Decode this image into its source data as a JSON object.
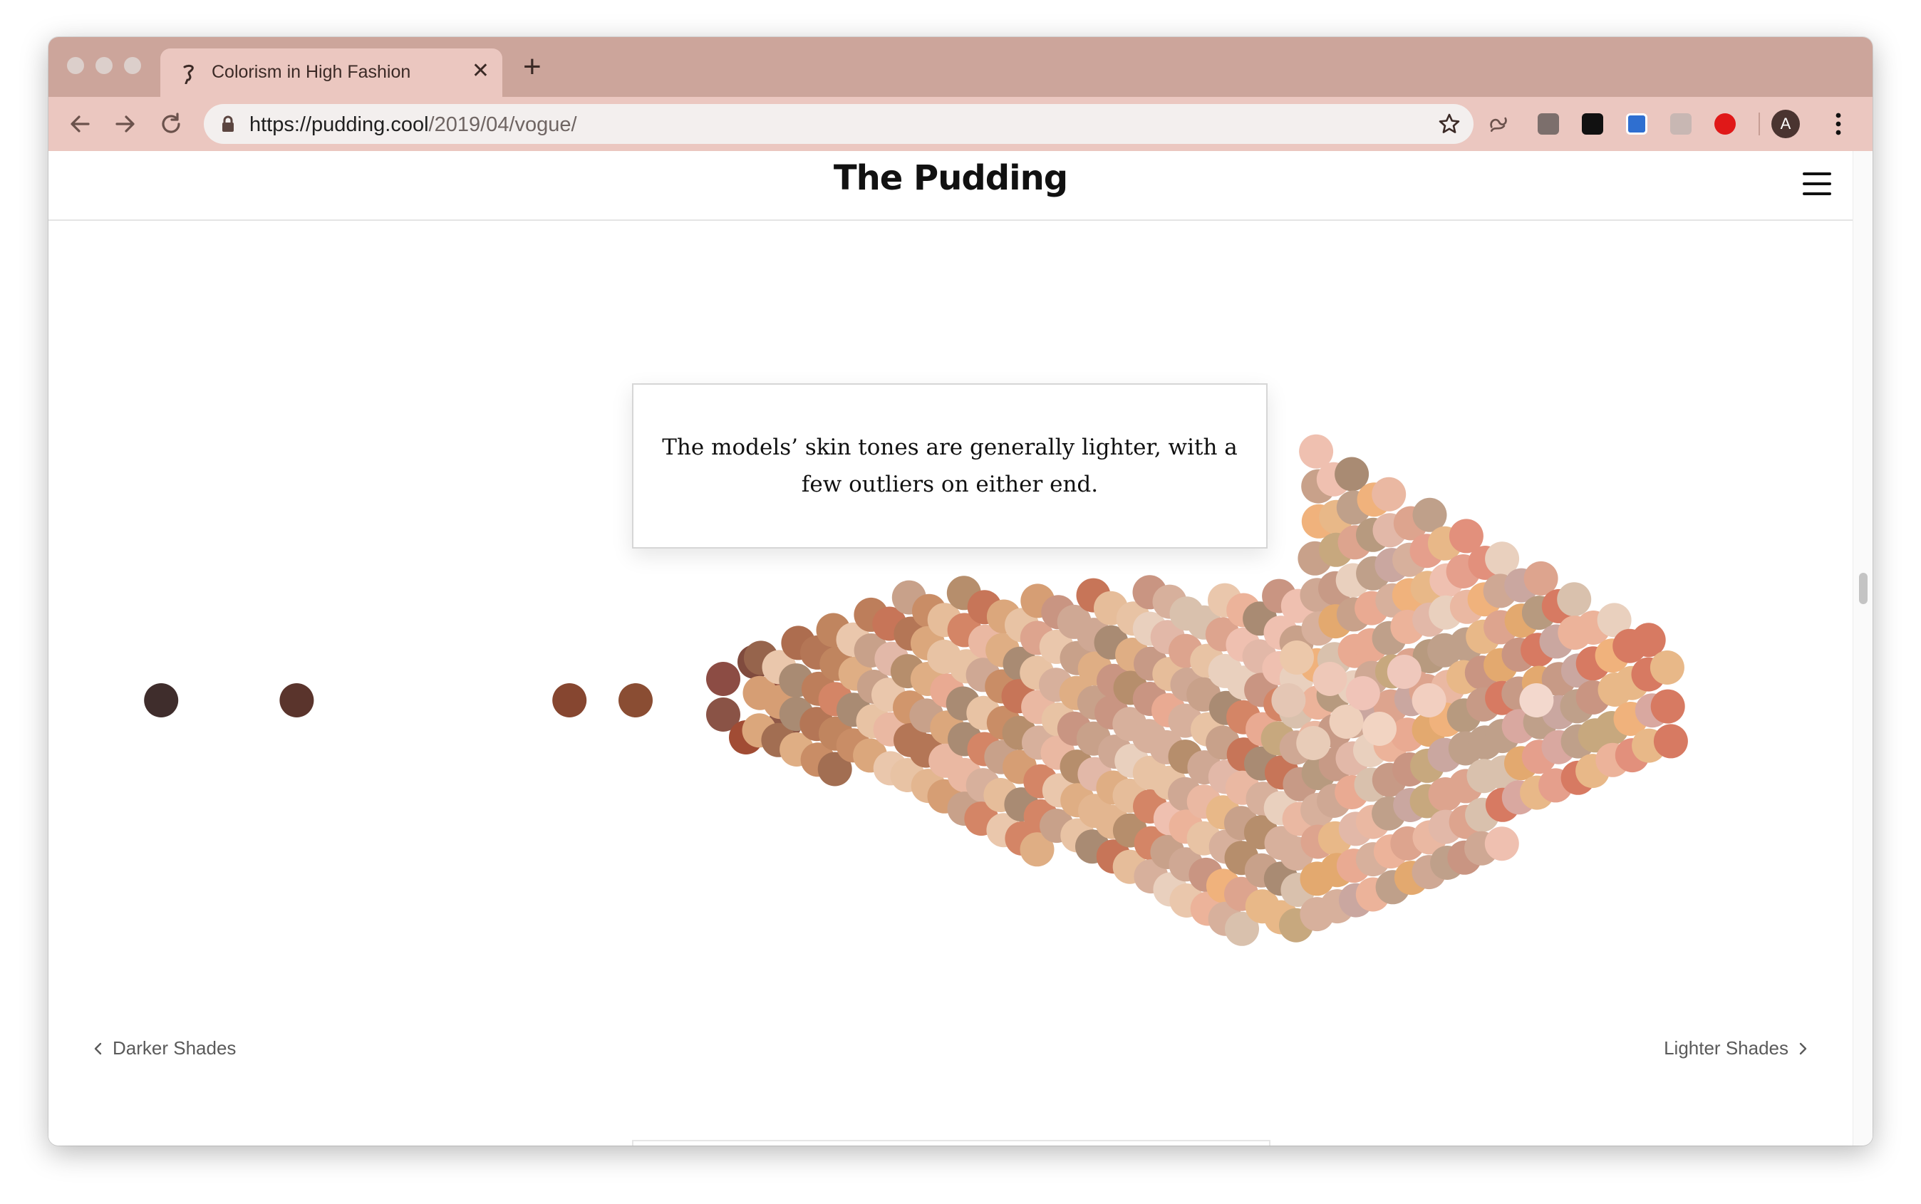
{
  "browser": {
    "tab_title": "Colorism in High Fashion",
    "tab_close": "✕",
    "new_tab": "+",
    "url_host": "https://pudding.cool",
    "url_path": "/2019/04/vogue/",
    "profile_initial": "A",
    "colors": {
      "tabbar": "#cca59b",
      "toolbar": "#ebc7c0"
    }
  },
  "site": {
    "logo": "The Pudding"
  },
  "story": {
    "callout": "The models’ skin tones are generally lighter, with a few outliers on either end."
  },
  "chart_data": {
    "type": "scatter",
    "title": "",
    "xlabel_left": "Darker Shades",
    "xlabel_right": "Lighter Shades",
    "x_meaning": "skin tone, darker to lighter",
    "y_meaning": "beeswarm spread (no scale)",
    "series": [
      {
        "points": [
          {
            "x": 1.3,
            "c": "#3f2d2c"
          },
          {
            "x": 9.5,
            "c": "#5a342c"
          },
          {
            "x": 26.0,
            "c": "#864630"
          },
          {
            "x": 30.0,
            "c": "#8a4d33"
          },
          {
            "x": 36.0,
            "c": "#8c4c44"
          },
          {
            "x": 36.5,
            "c": "#804b3e"
          },
          {
            "x": 37.0,
            "c": "#95503e"
          },
          {
            "x": 37.5,
            "c": "#8a5346"
          },
          {
            "x": 38.0,
            "c": "#8f5948"
          },
          {
            "x": 38.5,
            "c": "#a14c34"
          },
          {
            "x": 40.0,
            "c": "#8e6a52"
          },
          {
            "x": 42.5,
            "c": "#9c6e3e"
          },
          {
            "x": 45.0,
            "c": "#a76a48"
          },
          {
            "x": 46.0,
            "c": "#b05a3e"
          },
          {
            "x": 46.5,
            "c": "#8b6954"
          },
          {
            "x": 47.0,
            "c": "#a7723f"
          },
          {
            "x": 47.5,
            "c": "#a56146"
          },
          {
            "x": 48.0,
            "c": "#936b55"
          },
          {
            "x": 48.5,
            "c": "#a8744a"
          },
          {
            "x": 49.0,
            "c": "#8e7258"
          },
          {
            "x": 49.5,
            "c": "#b06a46"
          },
          {
            "x": 50.0,
            "c": "#9a6a50"
          },
          {
            "x": 50.5,
            "c": "#a07a56"
          },
          {
            "x": 51.0,
            "c": "#b06a50"
          },
          {
            "x": 51.5,
            "c": "#9c7456"
          },
          {
            "x": 52.0,
            "c": "#b87848"
          },
          {
            "x": 52.5,
            "c": "#a88258"
          },
          {
            "x": 53.0,
            "c": "#b9624a"
          },
          {
            "x": 53.5,
            "c": "#a67a62"
          },
          {
            "x": 54.0,
            "c": "#ad6d52"
          },
          {
            "x": 54.5,
            "c": "#b98262"
          },
          {
            "x": 55.0,
            "c": "#c06a4c"
          },
          {
            "x": 55.5,
            "c": "#a98a62"
          },
          {
            "x": 56.0,
            "c": "#c07a56"
          },
          {
            "x": 56.5,
            "c": "#b4865c"
          },
          {
            "x": 57.0,
            "c": "#c2755e"
          },
          {
            "x": 57.5,
            "c": "#b0906c"
          },
          {
            "x": 58.0,
            "c": "#c98660"
          },
          {
            "x": 58.5,
            "c": "#bb8a6a"
          },
          {
            "x": 59.0,
            "c": "#c7906a"
          },
          {
            "x": 59.5,
            "c": "#c0806a"
          },
          {
            "x": 60.0,
            "c": "#cf8e5e"
          },
          {
            "x": 60.5,
            "c": "#c4987a"
          },
          {
            "x": 61.0,
            "c": "#d0906e"
          },
          {
            "x": 61.5,
            "c": "#c8a078"
          },
          {
            "x": 62.0,
            "c": "#d59a76"
          },
          {
            "x": 62.5,
            "c": "#cd8a74"
          },
          {
            "x": 63.0,
            "c": "#d4a87c"
          },
          {
            "x": 63.5,
            "c": "#c9a08a"
          },
          {
            "x": 64.0,
            "c": "#daa078"
          },
          {
            "x": 64.5,
            "c": "#d2a68c"
          },
          {
            "x": 65.0,
            "c": "#ddb086"
          },
          {
            "x": 65.5,
            "c": "#d6a092"
          },
          {
            "x": 66.0,
            "c": "#e0ac8a"
          },
          {
            "x": 66.5,
            "c": "#d8b496"
          },
          {
            "x": 67.0,
            "c": "#e4b494"
          },
          {
            "x": 67.5,
            "c": "#dcb4a2"
          },
          {
            "x": 68.0,
            "c": "#e6bc98"
          },
          {
            "x": 68.5,
            "c": "#e0c0a6"
          },
          {
            "x": 69.0,
            "c": "#e8c0a6"
          },
          {
            "x": 69.5,
            "c": "#e4c6b4"
          },
          {
            "x": 70.0,
            "c": "#ecc8aa"
          },
          {
            "x": 71.0,
            "c": "#e8ccb8"
          },
          {
            "x": 72.0,
            "c": "#eec8b8"
          },
          {
            "x": 73.0,
            "c": "#eed0bc"
          },
          {
            "x": 74.0,
            "c": "#f0c4b8"
          },
          {
            "x": 75.0,
            "c": "#f2d4c2"
          },
          {
            "x": 76.5,
            "c": "#efc8bc"
          },
          {
            "x": 78.0,
            "c": "#f2cfc0"
          },
          {
            "x": 84.5,
            "c": "#f3d8cd"
          }
        ]
      }
    ],
    "palette_main": [
      "#7f4f3b",
      "#8a5a44",
      "#96644c",
      "#a26e52",
      "#ad6d4f",
      "#b47656",
      "#bd7e5b",
      "#c0855f",
      "#c98d66",
      "#d1966c",
      "#d69e74",
      "#dba77c",
      "#dfae84",
      "#e3b690",
      "#e6bd9a",
      "#e8c3a4",
      "#eac7ac",
      "#d48566",
      "#c77558",
      "#b68e6c",
      "#a98b73",
      "#c8a18a",
      "#d7b09c",
      "#e2b8a8",
      "#eab8a2",
      "#e9aa92",
      "#dda48e",
      "#cfa894",
      "#c79a86",
      "#c99582",
      "#d9c1ad",
      "#e9d0be",
      "#efc0b0",
      "#ecb39a",
      "#e8b888",
      "#f0b27c",
      "#e3a96f",
      "#c7a87e",
      "#b79a7f",
      "#bfa08a",
      "#caa7a0",
      "#d9a8a0",
      "#e59f8c",
      "#e2907c",
      "#d77a62"
    ]
  }
}
